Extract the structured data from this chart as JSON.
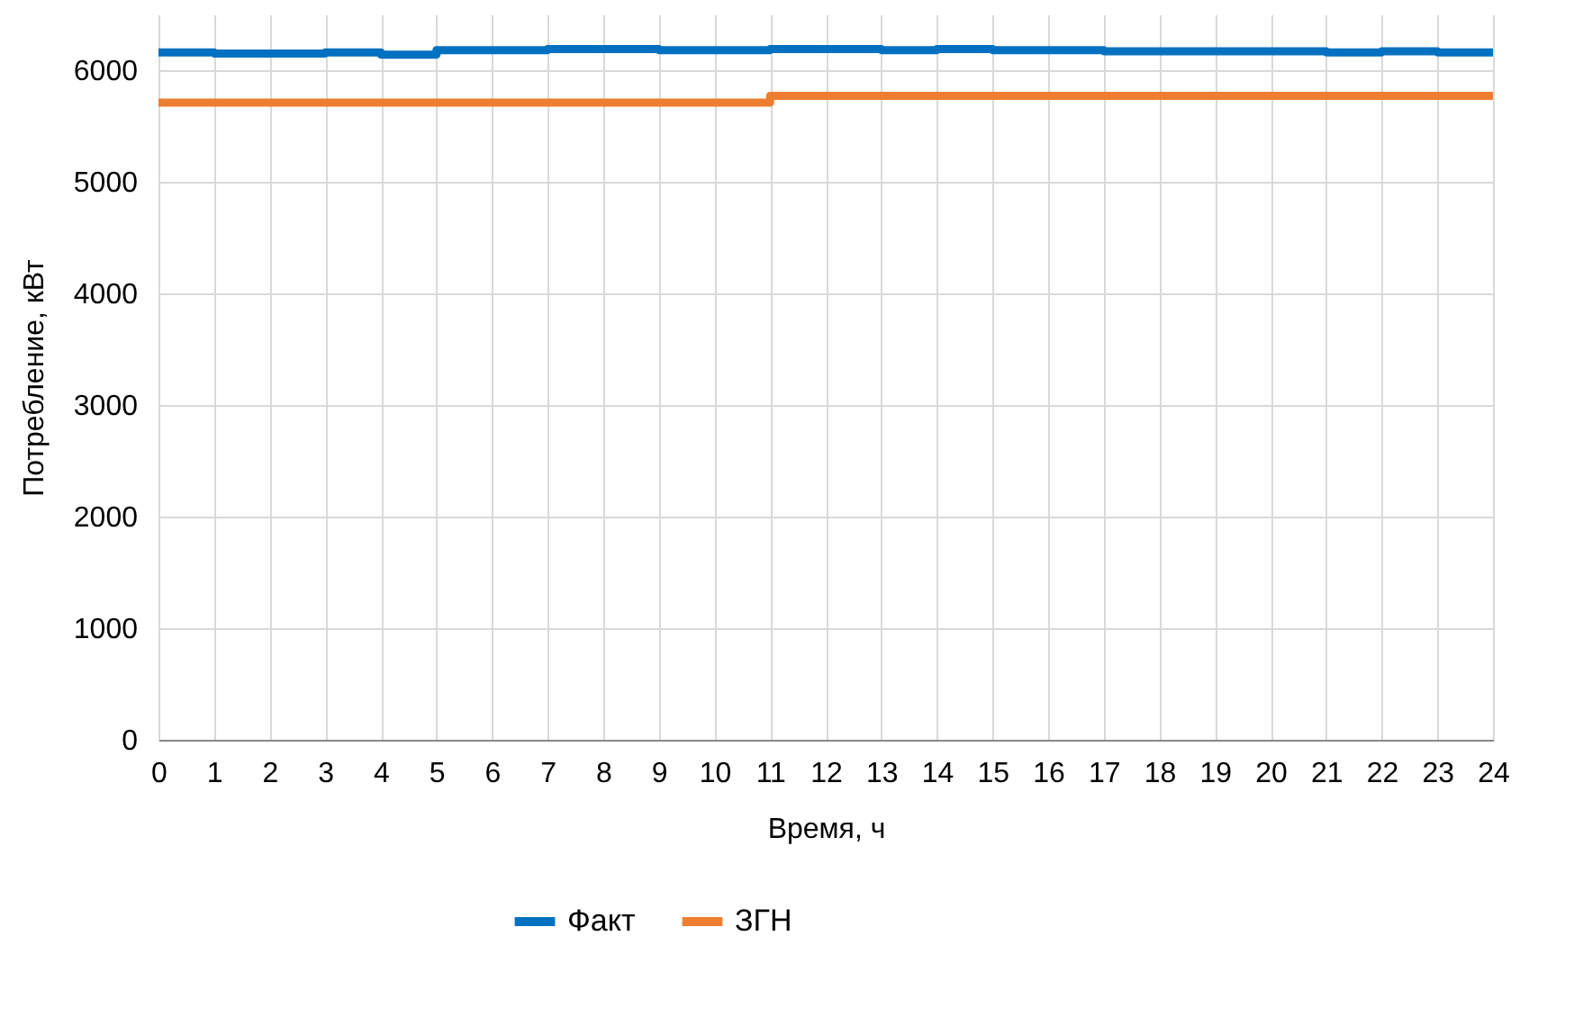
{
  "chart_data": {
    "type": "step",
    "xlabel": "Время, ч",
    "ylabel": "Потребление, кВт",
    "x": [
      0,
      1,
      2,
      3,
      4,
      5,
      6,
      7,
      8,
      9,
      10,
      11,
      12,
      13,
      14,
      15,
      16,
      17,
      18,
      19,
      20,
      21,
      22,
      23,
      24
    ],
    "series": [
      {
        "name": "Факт",
        "color": "#0070c0",
        "values": [
          6160,
          6150,
          6150,
          6160,
          6140,
          6180,
          6180,
          6190,
          6190,
          6180,
          6180,
          6190,
          6190,
          6180,
          6190,
          6180,
          6180,
          6170,
          6170,
          6170,
          6170,
          6160,
          6170,
          6160,
          6160
        ]
      },
      {
        "name": "ЗГН",
        "color": "#ed7d31",
        "values": [
          5710,
          5710,
          5710,
          5710,
          5710,
          5710,
          5710,
          5710,
          5710,
          5710,
          5710,
          5770,
          5770,
          5770,
          5770,
          5770,
          5770,
          5770,
          5770,
          5770,
          5770,
          5770,
          5770,
          5770,
          5770
        ]
      }
    ],
    "xlim": [
      0,
      24
    ],
    "xticks": [
      0,
      1,
      2,
      3,
      4,
      5,
      6,
      7,
      8,
      9,
      10,
      11,
      12,
      13,
      14,
      15,
      16,
      17,
      18,
      19,
      20,
      21,
      22,
      23,
      24
    ],
    "ylim": [
      0,
      6500
    ],
    "yticks": [
      0,
      1000,
      2000,
      3000,
      4000,
      5000,
      6000
    ],
    "grid": true,
    "legend": "bottom",
    "marker": "none",
    "line_style": "solid"
  }
}
